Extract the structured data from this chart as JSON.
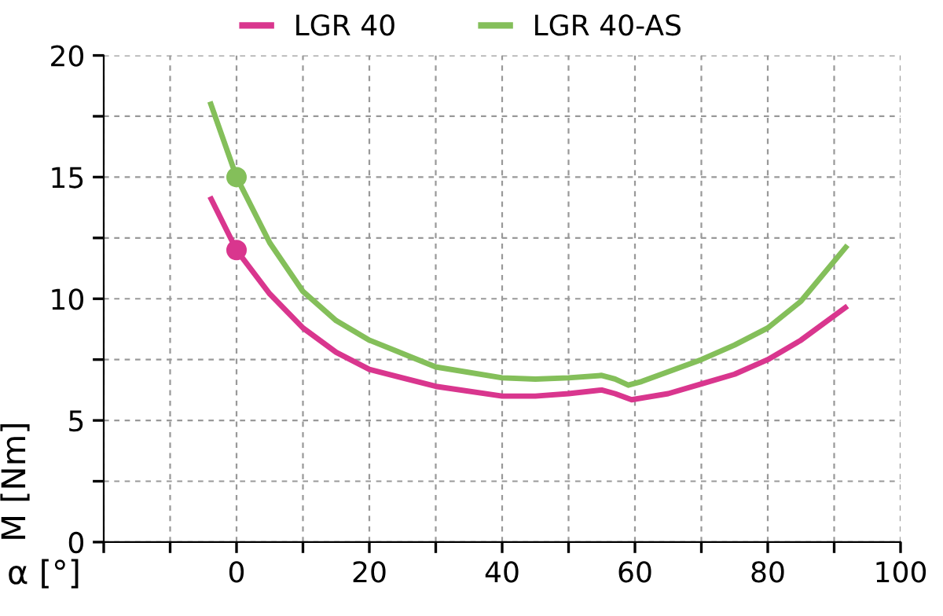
{
  "chart_data": {
    "type": "line",
    "xlabel": "α [°]",
    "ylabel": "M [Nm]",
    "xlim": [
      -20,
      100
    ],
    "ylim": [
      0,
      20
    ],
    "xticks": [
      {
        "value": -20,
        "label": null
      },
      {
        "value": -10,
        "label": null
      },
      0,
      {
        "value": 10,
        "label": null
      },
      20,
      {
        "value": 30,
        "label": null
      },
      40,
      {
        "value": 50,
        "label": null
      },
      60,
      {
        "value": 70,
        "label": null
      },
      80,
      {
        "value": 90,
        "label": null
      },
      100
    ],
    "yticks": [
      0,
      {
        "value": 2.5,
        "label": null
      },
      5,
      {
        "value": 7.5,
        "label": null
      },
      10,
      {
        "value": 12.5,
        "label": null
      },
      15,
      {
        "value": 17.5,
        "label": null
      },
      20
    ],
    "grid": true,
    "legend": "top",
    "line_style": "solid",
    "series": [
      {
        "name": "LGR 40",
        "color": "#d9368e",
        "x": [
          -4,
          0,
          5,
          10,
          15,
          20,
          30,
          40,
          45,
          50,
          55,
          57,
          59.5,
          65,
          70,
          75,
          80,
          85,
          92
        ],
        "values": [
          14.2,
          12,
          10.2,
          8.8,
          7.8,
          7.1,
          6.4,
          6.0,
          6.0,
          6.1,
          6.25,
          6.1,
          5.85,
          6.1,
          6.5,
          6.9,
          7.5,
          8.3,
          9.7
        ]
      },
      {
        "name": "LGR 40-AS",
        "color": "#84bf5a",
        "x": [
          -4,
          0,
          5,
          10,
          15,
          20,
          30,
          40,
          45,
          50,
          55,
          57,
          59,
          61,
          70,
          75,
          80,
          85,
          92
        ],
        "values": [
          18.1,
          15,
          12.3,
          10.3,
          9.1,
          8.3,
          7.2,
          6.75,
          6.7,
          6.75,
          6.85,
          6.7,
          6.45,
          6.6,
          7.5,
          8.1,
          8.8,
          9.9,
          12.2
        ]
      },
      {
        "type": "scatter",
        "marker": "circle",
        "color": "#d9368e",
        "x": [
          0
        ],
        "values": [
          12
        ]
      },
      {
        "type": "scatter",
        "marker": "circle",
        "color": "#84bf5a",
        "x": [
          0
        ],
        "values": [
          15
        ]
      }
    ]
  }
}
